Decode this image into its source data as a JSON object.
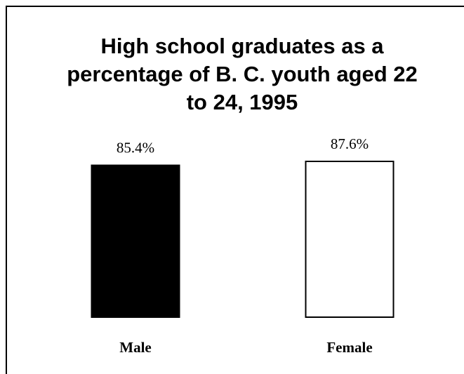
{
  "chart_data": {
    "type": "bar",
    "title": "High school graduates as a percentage of B. C. youth aged 22 to 24, 1995",
    "categories": [
      "Male",
      "Female"
    ],
    "values": [
      85.4,
      87.6
    ],
    "value_labels": [
      "85.4%",
      "87.6%"
    ],
    "colors": [
      "#000000",
      "#ffffff"
    ]
  }
}
